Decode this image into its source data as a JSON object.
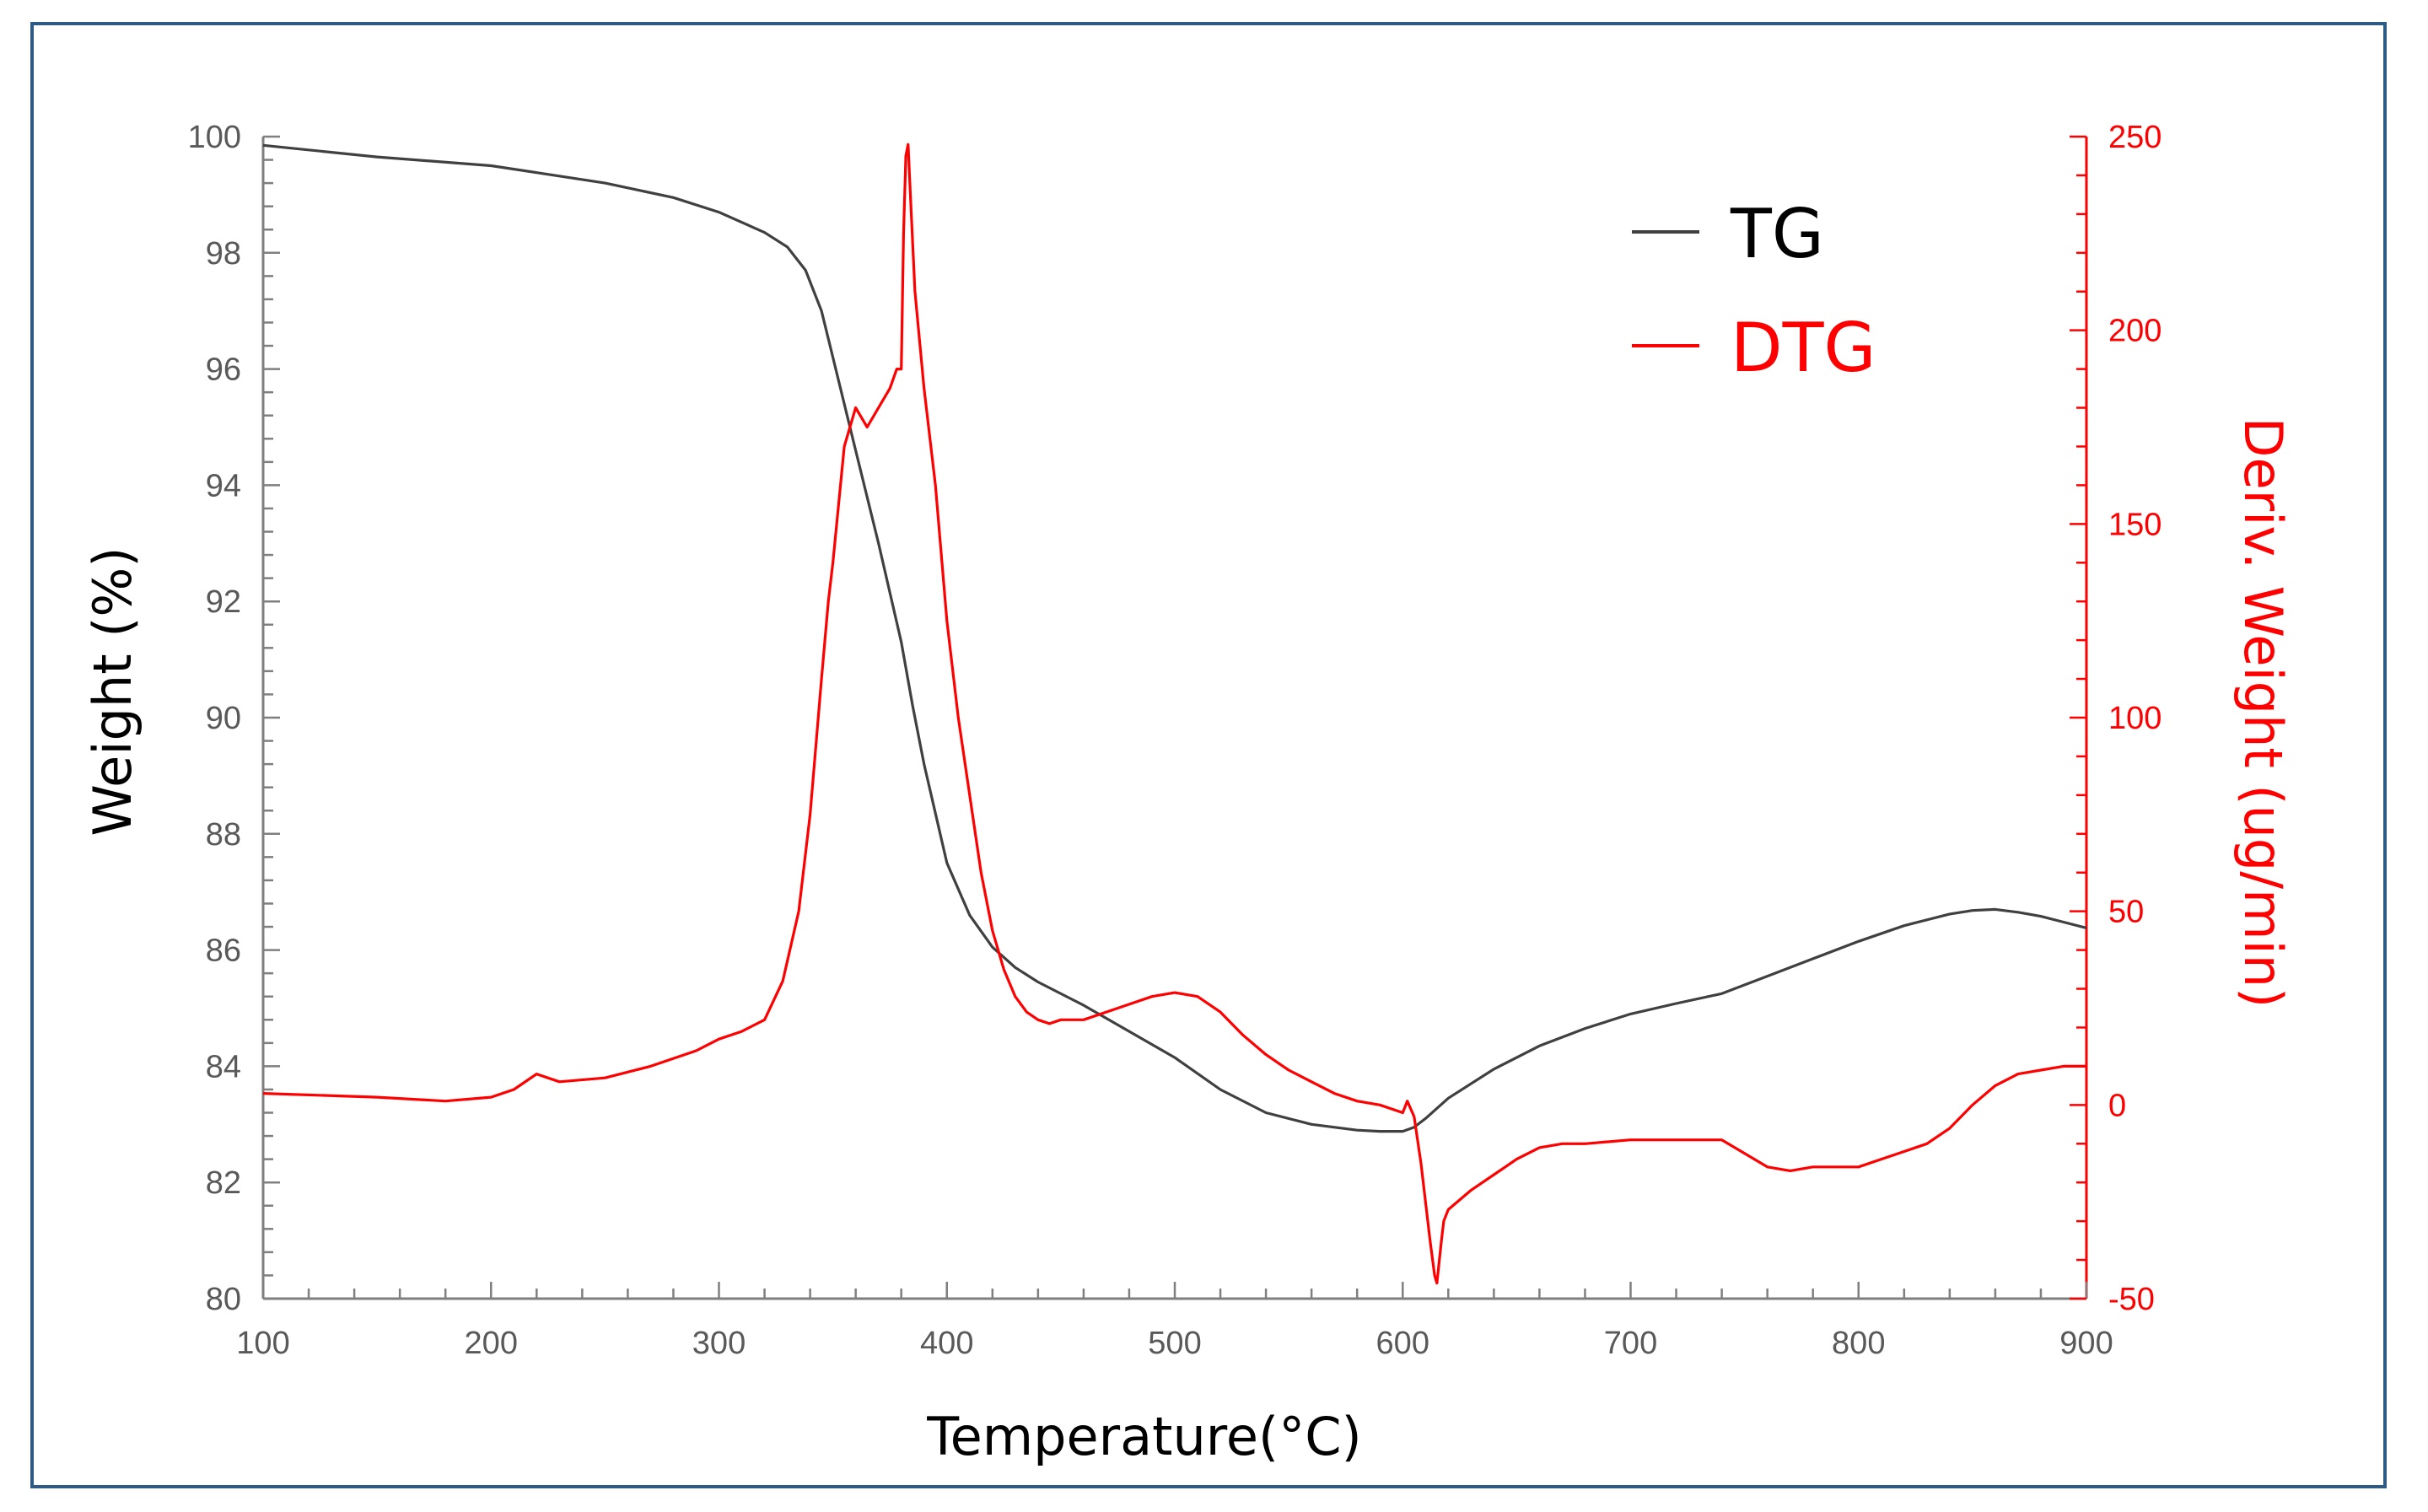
{
  "chart_data": {
    "type": "line",
    "title": "",
    "xlabel": "Temperature(°C)",
    "ylabel": "Weight (%)",
    "y2label": "Deriv. Weight (ug/min)",
    "xlim": [
      100,
      900
    ],
    "ylim": [
      80,
      100
    ],
    "y2lim": [
      -50,
      250
    ],
    "xticks": [
      "100",
      "200",
      "300",
      "400",
      "500",
      "600",
      "700",
      "800",
      "900"
    ],
    "yticks": [
      "80",
      "82",
      "84",
      "86",
      "88",
      "90",
      "92",
      "94",
      "96",
      "98",
      "100"
    ],
    "y2ticks": [
      "-50",
      "0",
      "50",
      "100",
      "150",
      "200",
      "250"
    ],
    "legend": [
      "TG",
      "DTG"
    ],
    "legend_position": "top-right",
    "colors": {
      "tg": "#404040",
      "dtg": "#FF0000",
      "frame": "#2E5A88"
    },
    "series": [
      {
        "name": "TG",
        "axis": "left",
        "x": [
          100,
          150,
          200,
          220,
          250,
          280,
          300,
          320,
          330,
          338,
          345,
          350,
          360,
          370,
          380,
          385,
          390,
          400,
          410,
          420,
          430,
          440,
          460,
          480,
          500,
          520,
          540,
          560,
          580,
          590,
          600,
          605,
          610,
          620,
          640,
          660,
          680,
          700,
          720,
          740,
          760,
          780,
          800,
          820,
          840,
          850,
          860,
          870,
          880,
          890,
          900
        ],
        "y": [
          99.85,
          99.65,
          99.5,
          99.38,
          99.2,
          98.95,
          98.7,
          98.35,
          98.1,
          97.7,
          97.0,
          96.2,
          94.6,
          93.0,
          91.3,
          90.2,
          89.2,
          87.5,
          86.6,
          86.05,
          85.7,
          85.45,
          85.05,
          84.6,
          84.15,
          83.6,
          83.2,
          83.0,
          82.9,
          82.88,
          82.88,
          82.95,
          83.1,
          83.45,
          83.95,
          84.35,
          84.65,
          84.9,
          85.08,
          85.25,
          85.55,
          85.85,
          86.15,
          86.42,
          86.62,
          86.68,
          86.7,
          86.65,
          86.58,
          86.48,
          86.38
        ]
      },
      {
        "name": "DTG",
        "axis": "right",
        "x": [
          100,
          150,
          180,
          200,
          210,
          220,
          230,
          250,
          270,
          290,
          300,
          310,
          320,
          328,
          335,
          340,
          345,
          348,
          350,
          355,
          360,
          365,
          370,
          375,
          378,
          380,
          381,
          382,
          383,
          384,
          386,
          390,
          395,
          400,
          405,
          410,
          415,
          420,
          425,
          430,
          435,
          440,
          445,
          450,
          460,
          470,
          480,
          490,
          500,
          510,
          520,
          530,
          540,
          550,
          560,
          570,
          580,
          590,
          595,
          600,
          602,
          605,
          608,
          610,
          612,
          614,
          615,
          617,
          618,
          620,
          630,
          640,
          650,
          660,
          670,
          680,
          700,
          720,
          740,
          760,
          770,
          780,
          790,
          800,
          810,
          820,
          830,
          840,
          850,
          860,
          870,
          880,
          890,
          900
        ],
        "y": [
          3,
          2,
          1,
          2,
          4,
          8,
          6,
          7,
          10,
          14,
          17,
          19,
          22,
          32,
          50,
          75,
          110,
          130,
          140,
          170,
          180,
          175,
          180,
          185,
          190,
          190,
          225,
          245,
          248,
          235,
          210,
          185,
          160,
          125,
          100,
          80,
          60,
          45,
          35,
          28,
          24,
          22,
          21,
          22,
          22,
          24,
          26,
          28,
          29,
          28,
          24,
          18,
          13,
          9,
          6,
          3,
          1,
          0,
          -1,
          -2,
          1,
          -3,
          -15,
          -25,
          -35,
          -44,
          -46,
          -35,
          -30,
          -27,
          -22,
          -18,
          -14,
          -11,
          -10,
          -10,
          -9,
          -9,
          -9,
          -16,
          -17,
          -16,
          -16,
          -16,
          -14,
          -12,
          -10,
          -6,
          0,
          5,
          8,
          9,
          10,
          10
        ]
      }
    ]
  }
}
